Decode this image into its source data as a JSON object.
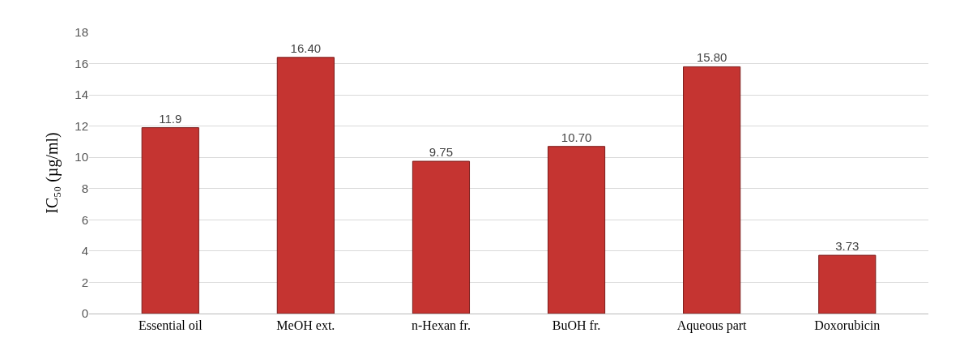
{
  "chart_data": {
    "type": "bar",
    "ylabel": "IC₅₀ (µg/ml)",
    "categories": [
      "Essential oil",
      "MeOH ext.",
      "n-Hexan fr.",
      "BuOH fr.",
      "Aqueous part",
      "Doxorubicin"
    ],
    "values": [
      11.9,
      16.4,
      9.75,
      10.7,
      15.8,
      3.73
    ],
    "value_labels": [
      "11.9",
      "16.40",
      "9.75",
      "10.70",
      "15.80",
      "3.73"
    ],
    "color": "#c53431",
    "ylim": [
      0,
      18
    ],
    "yticks": [
      0,
      2,
      4,
      6,
      8,
      10,
      12,
      14,
      16,
      18
    ],
    "grid": "y",
    "legend": false
  }
}
